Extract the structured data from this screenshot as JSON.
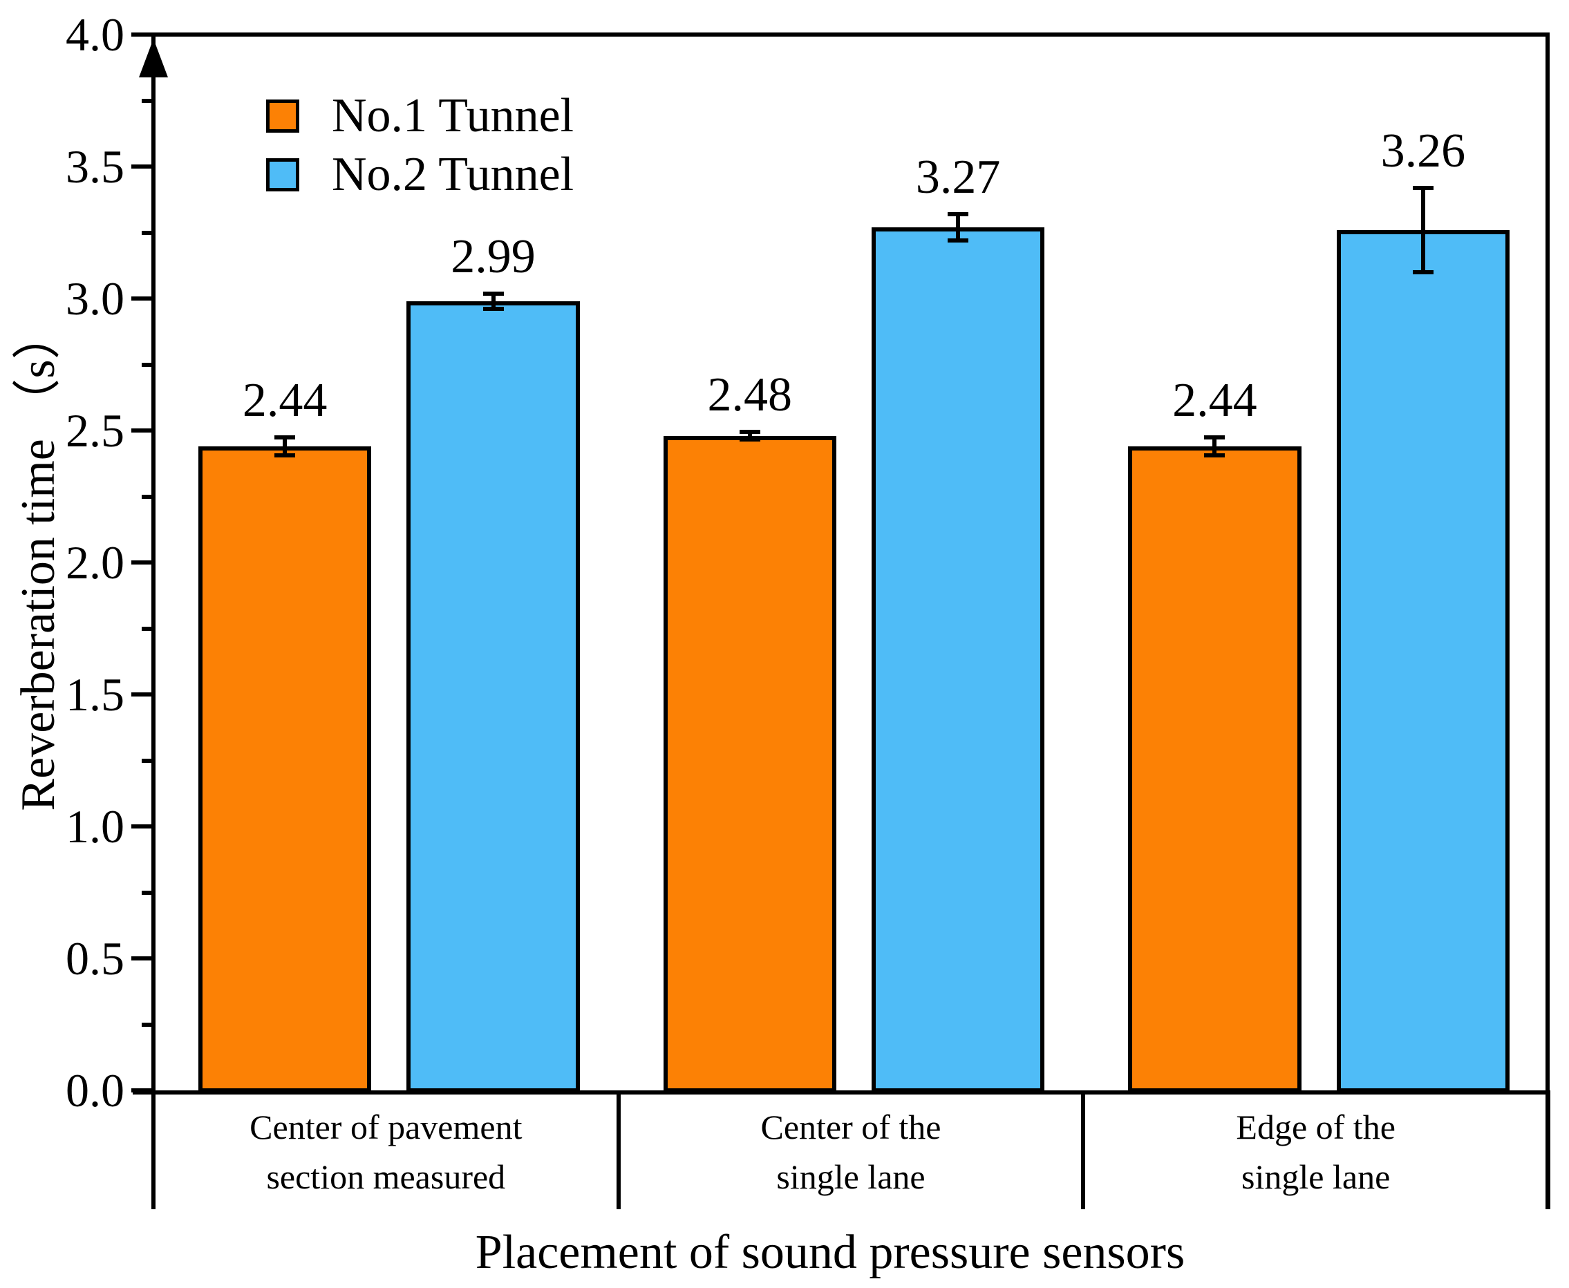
{
  "figure": {
    "background": "#ffffff",
    "text_color": "#000000",
    "axis_color": "#000000"
  },
  "legend": {
    "items": [
      {
        "label": "No.1 Tunnel",
        "color": "#FC8105"
      },
      {
        "label": "No.2 Tunnel",
        "color": "#4FBCF7"
      }
    ]
  },
  "chart_data": {
    "type": "bar",
    "title": "",
    "xlabel": "Placement of sound pressure sensors",
    "ylabel": "Reverberation time （s）",
    "ylim": [
      0,
      4
    ],
    "ytick_major_step": 0.5,
    "ytick_minor_step": 0.25,
    "ytick_labels": [
      "0.0",
      "0.5",
      "1.0",
      "1.5",
      "2.0",
      "2.5",
      "3.0",
      "3.5",
      "4.0"
    ],
    "grid": false,
    "legend_position": "top-left",
    "categories": [
      "Center of pavement section measured",
      "Center of the single lane",
      "Edge of the single lane"
    ],
    "categories_lines": [
      [
        "Center of pavement",
        "section measured"
      ],
      [
        "Center of the",
        "single lane"
      ],
      [
        "Edge of the",
        "single lane"
      ]
    ],
    "series": [
      {
        "name": "No.1 Tunnel",
        "color": "#FC8105",
        "values": [
          2.44,
          2.48,
          2.44
        ],
        "errors": [
          0.035,
          0.015,
          0.035
        ],
        "value_labels": [
          "2.44",
          "2.48",
          "2.44"
        ]
      },
      {
        "name": "No.2 Tunnel",
        "color": "#4FBCF7",
        "values": [
          2.99,
          3.27,
          3.26
        ],
        "errors": [
          0.028,
          0.05,
          0.16
        ],
        "value_labels": [
          "2.99",
          "3.27",
          "3.26"
        ]
      }
    ]
  }
}
